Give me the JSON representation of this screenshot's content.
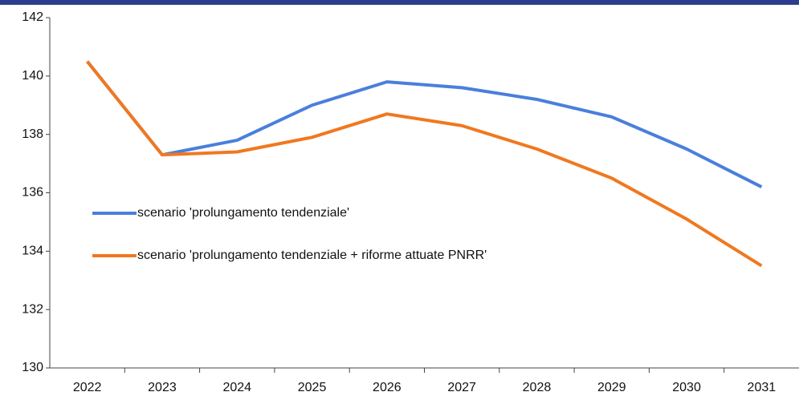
{
  "chart_data": {
    "type": "line",
    "categories": [
      "2022",
      "2023",
      "2024",
      "2025",
      "2026",
      "2027",
      "2028",
      "2029",
      "2030",
      "2031"
    ],
    "series": [
      {
        "name": "scenario 'prolungamento tendenziale'",
        "color": "#4a7fdc",
        "values": [
          140.5,
          137.3,
          137.8,
          139.0,
          139.8,
          139.6,
          139.2,
          138.6,
          137.5,
          136.2
        ]
      },
      {
        "name": "scenario 'prolungamento tendenziale + riforme attuate PNRR'",
        "color": "#f07820",
        "values": [
          140.5,
          137.3,
          137.4,
          137.9,
          138.7,
          138.3,
          137.5,
          136.5,
          135.1,
          133.5
        ]
      }
    ],
    "ylim": [
      130,
      142
    ],
    "yticks": [
      130,
      132,
      134,
      136,
      138,
      140,
      142
    ],
    "grid": false,
    "legend": "left"
  }
}
